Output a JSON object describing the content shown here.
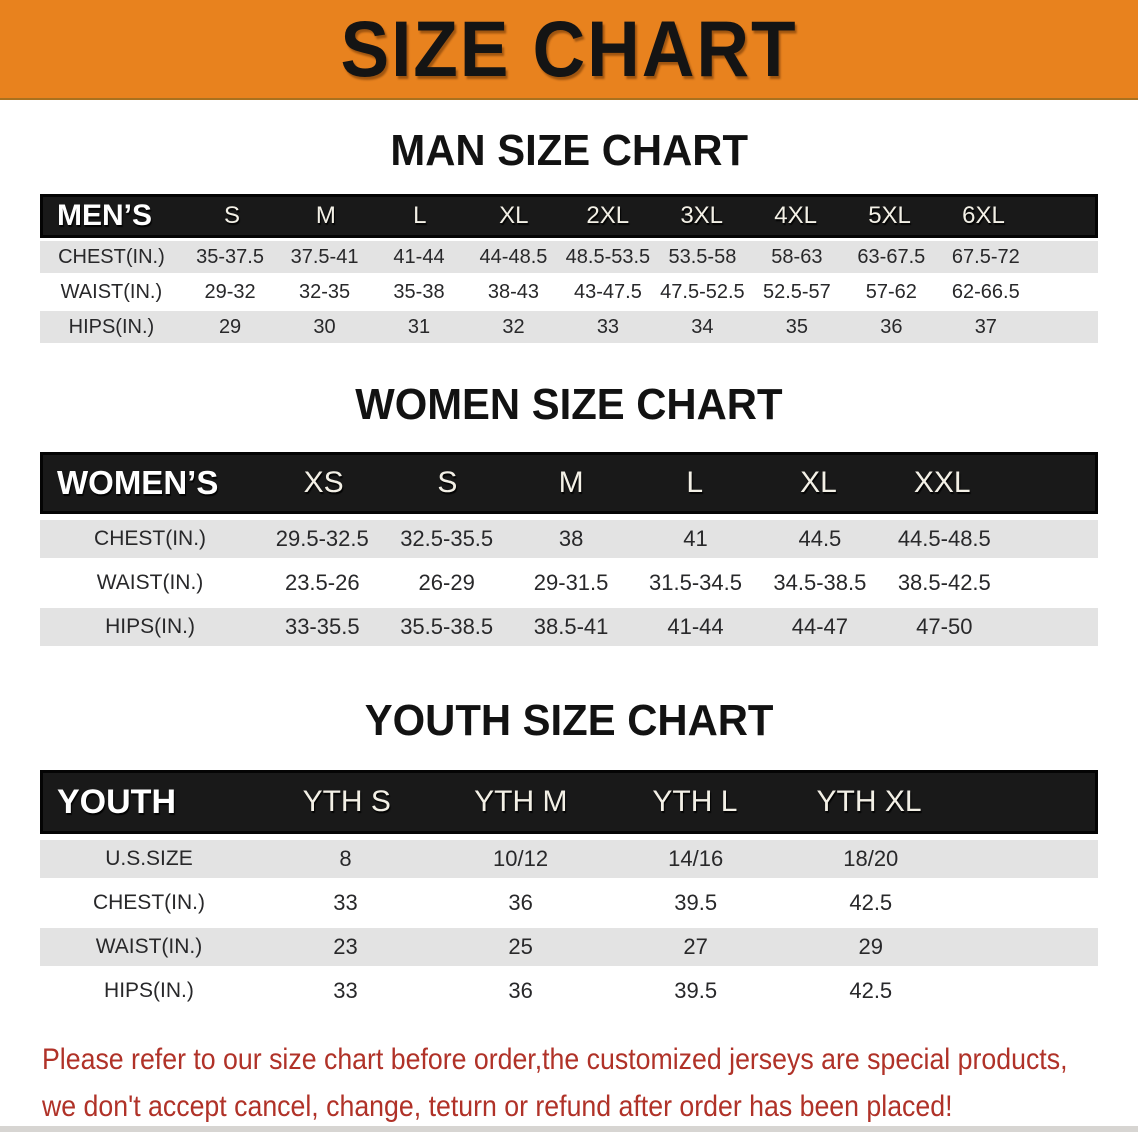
{
  "banner": {
    "title": "SIZE CHART",
    "bg_color": "#e8821e",
    "title_color": "#141414"
  },
  "sections": [
    {
      "heading": "MAN SIZE CHART",
      "table": {
        "label": "MEN’S",
        "columns": [
          "S",
          "M",
          "L",
          "XL",
          "2XL",
          "3XL",
          "4XL",
          "5XL",
          "6XL"
        ],
        "rows": [
          {
            "label": "CHEST(IN.)",
            "values": [
              "35-37.5",
              "37.5-41",
              "41-44",
              "44-48.5",
              "48.5-53.5",
              "53.5-58",
              "58-63",
              "63-67.5",
              "67.5-72"
            ]
          },
          {
            "label": "WAIST(IN.)",
            "values": [
              "29-32",
              "32-35",
              "35-38",
              "38-43",
              "43-47.5",
              "47.5-52.5",
              "52.5-57",
              "57-62",
              "62-66.5"
            ]
          },
          {
            "label": "HIPS(IN.)",
            "values": [
              "29",
              "30",
              "31",
              "32",
              "33",
              "34",
              "35",
              "36",
              "37"
            ]
          }
        ]
      }
    },
    {
      "heading": "WOMEN SIZE CHART",
      "table": {
        "label": "WOMEN’S",
        "columns": [
          "XS",
          "S",
          "M",
          "L",
          "XL",
          "XXL"
        ],
        "rows": [
          {
            "label": "CHEST(IN.)",
            "values": [
              "29.5-32.5",
              "32.5-35.5",
              "38",
              "41",
              "44.5",
              "44.5-48.5"
            ]
          },
          {
            "label": "WAIST(IN.)",
            "values": [
              "23.5-26",
              "26-29",
              "29-31.5",
              "31.5-34.5",
              "34.5-38.5",
              "38.5-42.5"
            ]
          },
          {
            "label": "HIPS(IN.)",
            "values": [
              "33-35.5",
              "35.5-38.5",
              "38.5-41",
              "41-44",
              "44-47",
              "47-50"
            ]
          }
        ]
      }
    },
    {
      "heading": "YOUTH SIZE CHART",
      "table": {
        "label": "YOUTH",
        "columns": [
          "YTH S",
          "YTH M",
          "YTH L",
          "YTH XL"
        ],
        "rows": [
          {
            "label": "U.S.SIZE",
            "values": [
              "8",
              "10/12",
              "14/16",
              "18/20"
            ]
          },
          {
            "label": "CHEST(IN.)",
            "values": [
              "33",
              "36",
              "39.5",
              "42.5"
            ]
          },
          {
            "label": "WAIST(IN.)",
            "values": [
              "23",
              "25",
              "27",
              "29"
            ]
          },
          {
            "label": "HIPS(IN.)",
            "values": [
              "33",
              "36",
              "39.5",
              "42.5"
            ]
          }
        ]
      }
    }
  ],
  "disclaimer": {
    "line1": "Please refer to our size chart before order,the customized jerseys are special products,",
    "line2": "we don't accept cancel, change, teturn or refund after order has been placed!",
    "color": "#b03228"
  },
  "style_colors": {
    "table_header_bg": "#191919",
    "row_gray": "#e3e3e3",
    "row_white": "#ffffff"
  }
}
